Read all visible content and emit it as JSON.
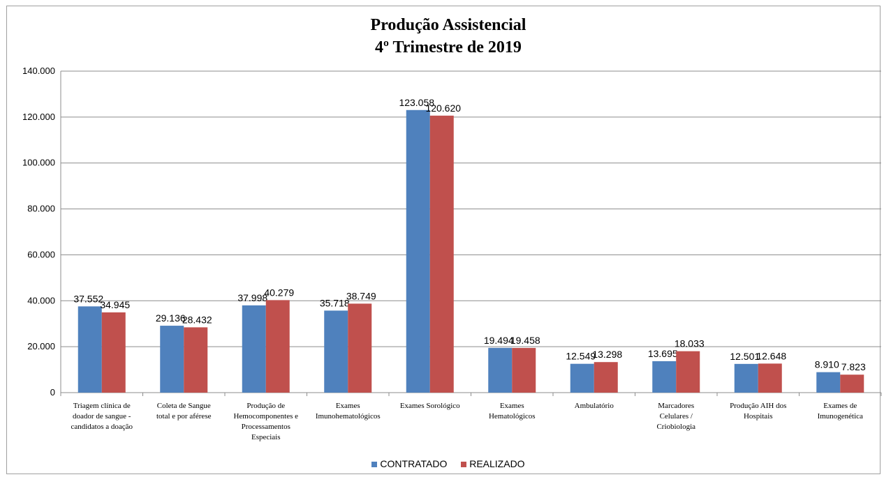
{
  "chart_data": {
    "type": "bar",
    "title": "Produção Assistencial",
    "subtitle": "4º Trimestre de 2019",
    "categories": [
      [
        "Triagem clínica de",
        "doador de sangue -",
        "candidatos a doação"
      ],
      [
        "Coleta de Sangue",
        "total e por aférese"
      ],
      [
        "Produção de",
        "Hemocomponentes e",
        "Processamentos",
        "Especiais"
      ],
      [
        "Exames",
        "Imunohematológicos"
      ],
      [
        "Exames Sorológico"
      ],
      [
        "Exames",
        "Hematológicos"
      ],
      [
        "Ambulatório"
      ],
      [
        "Marcadores",
        "Celulares /",
        "Criobiologia"
      ],
      [
        "Produção AIH dos",
        "Hospitais"
      ],
      [
        "Exames de",
        "Imunogenética"
      ]
    ],
    "series": [
      {
        "name": "CONTRATADO",
        "color": "#4f81bd",
        "values": [
          37552,
          29136,
          37998,
          35718,
          123058,
          19494,
          12549,
          13695,
          12501,
          8910
        ],
        "labels": [
          "37.552",
          "29.136",
          "37.998",
          "35.718",
          "123.058",
          "19.494",
          "12.549",
          "13.695",
          "12.501",
          "8.910"
        ]
      },
      {
        "name": "REALIZADO",
        "color": "#c0504d",
        "values": [
          34945,
          28432,
          40279,
          38749,
          120620,
          19458,
          13298,
          18033,
          12648,
          7823
        ],
        "labels": [
          "34.945",
          "28.432",
          "40.279",
          "38.749",
          "120.620",
          "19.458",
          "13.298",
          "18.033",
          "12.648",
          "7.823"
        ]
      }
    ],
    "ylim": [
      0,
      140000
    ],
    "yticks": [
      {
        "value": 0,
        "label": "0"
      },
      {
        "value": 20000,
        "label": "20.000"
      },
      {
        "value": 40000,
        "label": "40.000"
      },
      {
        "value": 60000,
        "label": "60.000"
      },
      {
        "value": 80000,
        "label": "80.000"
      },
      {
        "value": 100000,
        "label": "100.000"
      },
      {
        "value": 120000,
        "label": "120.000"
      },
      {
        "value": 140000,
        "label": "140.000"
      }
    ],
    "grid": true,
    "legend_position": "bottom"
  }
}
